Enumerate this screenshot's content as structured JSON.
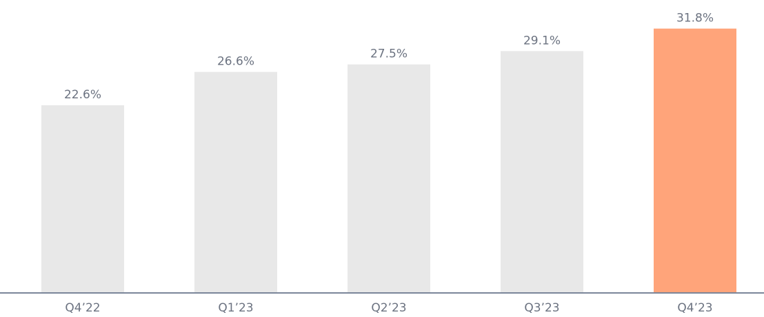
{
  "chart_data": {
    "type": "bar",
    "categories": [
      "Q4’22",
      "Q1’23",
      "Q2’23",
      "Q3’23",
      "Q4’23"
    ],
    "values": [
      22.6,
      26.6,
      27.5,
      29.1,
      31.8
    ],
    "value_labels": [
      "22.6%",
      "26.6%",
      "27.5%",
      "29.1%",
      "31.8%"
    ],
    "colors": [
      "#e8e8e8",
      "#e8e8e8",
      "#e8e8e8",
      "#e8e8e8",
      "#ffa47a"
    ]
  }
}
